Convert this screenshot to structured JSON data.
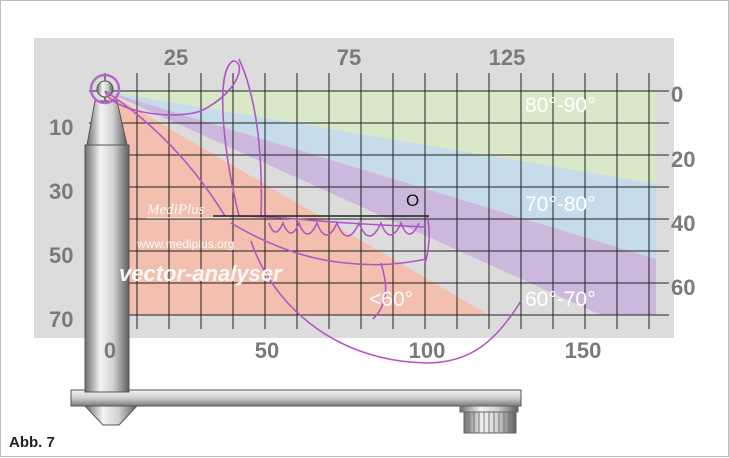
{
  "figure": {
    "caption": "Abb. 7",
    "top_axis_labels": [
      "25",
      "75",
      "125"
    ],
    "bottom_axis_labels": [
      "0",
      "50",
      "100",
      "150"
    ],
    "left_axis_labels": [
      "10",
      "30",
      "50",
      "70"
    ],
    "right_axis_labels": [
      "0",
      "20",
      "40",
      "60"
    ],
    "zones": [
      {
        "label": "80°-90°",
        "color": "#d9e8c9"
      },
      {
        "label": "70°-80°",
        "color": "#c7dcea"
      },
      {
        "label": "60°-70°",
        "color": "#cdb8dd"
      },
      {
        "label": "<60°",
        "color": "#f3bfae"
      }
    ],
    "marker_label": "O",
    "brand": {
      "logo": "MediPlus",
      "website": "www.mediplus.org",
      "product": "vector-analyser"
    }
  }
}
